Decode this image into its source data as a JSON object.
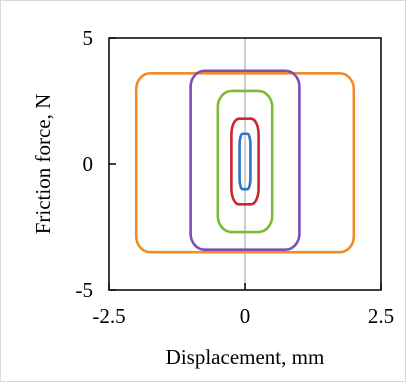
{
  "chart_data": {
    "type": "line",
    "title": "",
    "xlabel": "Displacement,  mm",
    "ylabel": "Friction force,  N",
    "xlim": [
      -2.5,
      2.5
    ],
    "ylim": [
      -5,
      5
    ],
    "x_ticks": [
      {
        "value": -2.5,
        "label": "-2.5"
      },
      {
        "value": 0,
        "label": "0"
      },
      {
        "value": 2.5,
        "label": "2.5"
      }
    ],
    "y_ticks": [
      {
        "value": 5,
        "label": "5"
      },
      {
        "value": 0,
        "label": "0"
      },
      {
        "value": -5,
        "label": "-5"
      }
    ],
    "grid": false,
    "legend": "none",
    "series": [
      {
        "color": "#f28c28",
        "x_amplitude": 2.0,
        "y_top": 3.6,
        "y_bottom": -3.5
      },
      {
        "color": "#7b4fb5",
        "x_amplitude": 1.0,
        "y_top": 3.7,
        "y_bottom": -3.4
      },
      {
        "color": "#7cba3c",
        "x_amplitude": 0.5,
        "y_top": 2.9,
        "y_bottom": -2.7
      },
      {
        "color": "#c8282e",
        "x_amplitude": 0.25,
        "y_top": 1.8,
        "y_bottom": -1.6
      },
      {
        "color": "#2e75c8",
        "x_amplitude": 0.1,
        "y_top": 1.2,
        "y_bottom": -1.0
      }
    ]
  }
}
